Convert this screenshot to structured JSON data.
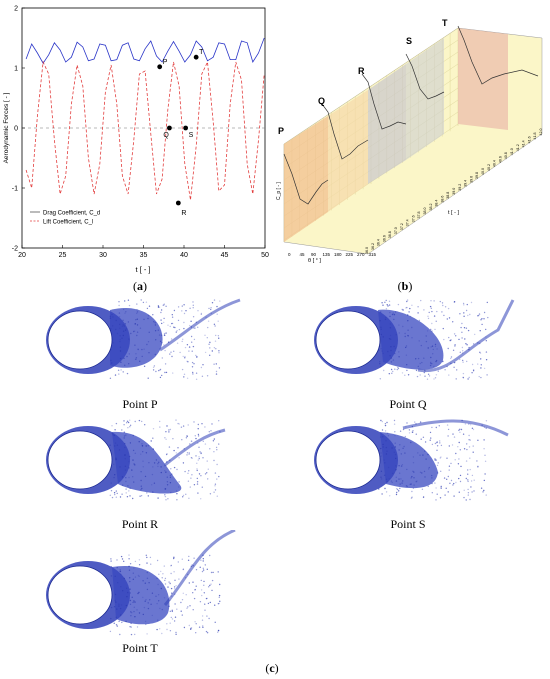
{
  "panels": {
    "a": {
      "open": "(",
      "letter": "a",
      "close": ")"
    },
    "b": {
      "open": "(",
      "letter": "b",
      "close": ")"
    },
    "c": {
      "open": "(",
      "letter": "c",
      "close": ")"
    }
  },
  "chart_data": [
    {
      "type": "line",
      "xlabel": "t [ - ]",
      "ylabel": "Aerodynamic Forces [ - ]",
      "xlim": [
        20,
        50
      ],
      "ylim": [
        -2,
        2
      ],
      "xticks": [
        20,
        25,
        30,
        35,
        40,
        45,
        50
      ],
      "yticks": [
        -2,
        -1,
        0,
        1,
        2
      ],
      "legend": {
        "placement": "bottom-left",
        "entries": [
          "Drag Coefficient, C_d",
          "Lift Coefficient, C_l"
        ]
      },
      "series": [
        {
          "name": "Drag Coefficient, C_d",
          "style": "solid",
          "color": "#2a35c8",
          "x": [
            20.5,
            21.2,
            21.9,
            22.6,
            23.3,
            24.0,
            24.7,
            25.4,
            26.1,
            26.8,
            27.5,
            28.2,
            28.9,
            29.6,
            30.3,
            31.0,
            31.7,
            32.4,
            33.1,
            33.8,
            34.5,
            35.2,
            35.9,
            36.6,
            37.3,
            38.0,
            38.7,
            39.4,
            40.1,
            40.8,
            41.5,
            42.2,
            42.9,
            43.6,
            44.3,
            45.0,
            45.7,
            46.4,
            47.1,
            47.8,
            48.5,
            49.2,
            49.9
          ],
          "y": [
            1.15,
            1.4,
            1.25,
            1.08,
            1.22,
            1.42,
            1.3,
            1.1,
            1.18,
            1.43,
            1.35,
            1.12,
            1.15,
            1.4,
            1.38,
            1.12,
            1.14,
            1.38,
            1.42,
            1.15,
            1.12,
            1.32,
            1.45,
            1.2,
            1.1,
            1.28,
            1.44,
            1.28,
            1.1,
            1.22,
            1.45,
            1.35,
            1.12,
            1.18,
            1.42,
            1.4,
            1.14,
            1.14,
            1.45,
            1.42,
            1.1,
            1.25,
            1.5
          ]
        },
        {
          "name": "Lift Coefficient, C_l",
          "style": "dashed",
          "color": "#e23c3c",
          "x": [
            20.5,
            21.2,
            21.9,
            22.6,
            23.3,
            24.0,
            24.7,
            25.4,
            26.1,
            26.8,
            27.5,
            28.2,
            28.9,
            29.6,
            30.3,
            31.0,
            31.7,
            32.4,
            33.1,
            33.8,
            34.5,
            35.2,
            35.9,
            36.6,
            37.3,
            38.0,
            38.7,
            39.4,
            40.1,
            40.8,
            41.5,
            42.2,
            42.9,
            43.6,
            44.3,
            45.0,
            45.7,
            46.4,
            47.1,
            47.8,
            48.5,
            49.2,
            49.9
          ],
          "y": [
            -0.7,
            -1.0,
            0.2,
            1.1,
            0.9,
            -0.2,
            -1.1,
            -0.8,
            0.4,
            1.05,
            0.7,
            -0.5,
            -1.1,
            -0.6,
            0.6,
            1.05,
            0.4,
            -0.8,
            -1.1,
            -0.2,
            0.9,
            0.95,
            -0.1,
            -1.1,
            -0.85,
            0.3,
            1.1,
            0.7,
            -0.6,
            -1.2,
            -0.3,
            0.9,
            1.1,
            0.1,
            -1.05,
            -0.95,
            0.4,
            1.1,
            0.8,
            -0.6,
            -1.1,
            -0.2,
            0.9
          ]
        }
      ],
      "annotations": [
        {
          "label": "P",
          "x": 37.0,
          "y": 1.02
        },
        {
          "label": "Q",
          "x": 38.2,
          "y": 0.0
        },
        {
          "label": "R",
          "x": 39.3,
          "y": -1.25
        },
        {
          "label": "S",
          "x": 40.2,
          "y": 0.0
        },
        {
          "label": "T",
          "x": 41.5,
          "y": 1.18
        }
      ]
    },
    {
      "type": "area",
      "xlabel": "θ [ ° ]",
      "ylabel": "C_p [ - ]",
      "zlabel": "t [ - ]",
      "x_ticks": [
        "0",
        "45",
        "90",
        "135",
        "180",
        "225",
        "270",
        "315"
      ],
      "t_ticks": [
        "36.0",
        "36.2",
        "36.4",
        "36.6",
        "36.8",
        "37.0",
        "37.2",
        "37.4",
        "37.6",
        "37.8",
        "38.0",
        "38.2",
        "38.4",
        "38.6",
        "38.8",
        "39.0",
        "39.2",
        "39.4",
        "39.6",
        "39.8",
        "40.0",
        "40.2",
        "40.4",
        "40.6",
        "40.8",
        "41.0",
        "41.2",
        "41.4",
        "41.6",
        "41.8",
        "42.0"
      ],
      "slices": [
        "P",
        "Q",
        "R",
        "S",
        "T"
      ]
    }
  ],
  "flow_snapshots": [
    {
      "id": "P",
      "caption": "Point P"
    },
    {
      "id": "Q",
      "caption": "Point Q"
    },
    {
      "id": "R",
      "caption": "Point R"
    },
    {
      "id": "S",
      "caption": "Point S"
    },
    {
      "id": "T",
      "caption": "Point T"
    }
  ]
}
